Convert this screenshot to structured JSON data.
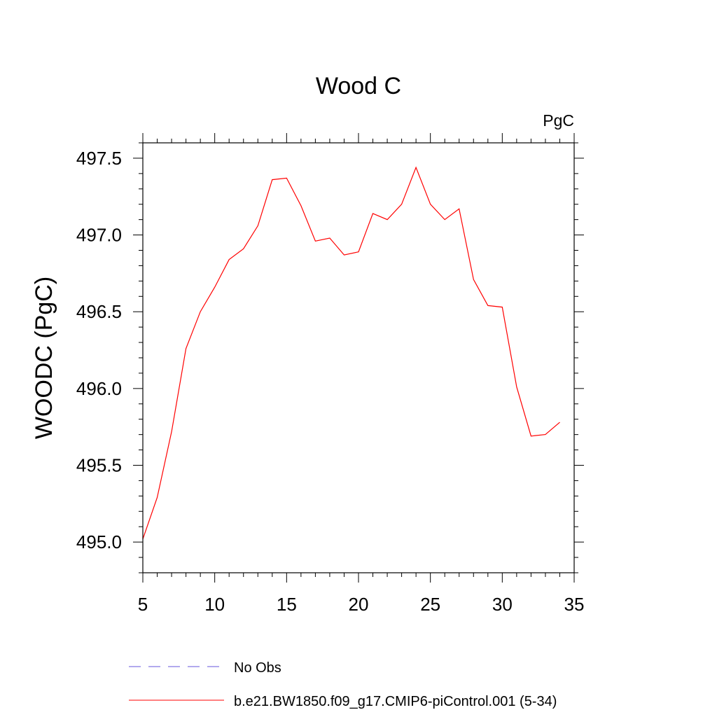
{
  "chart_data": {
    "type": "line",
    "title": "Wood C",
    "units_label": "PgC",
    "ylabel": "WOODC  (PgC)",
    "xlabel": "",
    "xlim": [
      5,
      35
    ],
    "ylim": [
      494.8,
      497.6
    ],
    "x_ticks": [
      5,
      10,
      15,
      20,
      25,
      30,
      35
    ],
    "y_ticks": [
      495.0,
      495.5,
      496.0,
      496.5,
      497.0,
      497.5
    ],
    "y_tick_labels": [
      "495.0",
      "495.5",
      "496.0",
      "496.5",
      "497.0",
      "497.5"
    ],
    "grid": false,
    "legend_position": "bottom",
    "series": [
      {
        "name": "b.e21.BW1850.f09_g17.CMIP6-piControl.001 (5-34)",
        "color": "#ff0000",
        "style": "solid",
        "x": [
          5,
          6,
          7,
          8,
          9,
          10,
          11,
          12,
          13,
          14,
          15,
          16,
          17,
          18,
          19,
          20,
          21,
          22,
          23,
          24,
          25,
          26,
          27,
          28,
          29,
          30,
          31,
          32,
          33,
          34
        ],
        "values": [
          495.02,
          495.29,
          495.72,
          496.26,
          496.5,
          496.66,
          496.84,
          496.91,
          497.06,
          497.36,
          497.37,
          497.19,
          496.96,
          496.98,
          496.87,
          496.89,
          497.14,
          497.1,
          497.2,
          497.44,
          497.2,
          497.1,
          497.17,
          496.71,
          496.54,
          496.53,
          496.01,
          495.69,
          495.7,
          495.78
        ]
      }
    ],
    "legend": [
      {
        "label": "No Obs",
        "color": "#6655dd",
        "style": "dashed"
      },
      {
        "label": "b.e21.BW1850.f09_g17.CMIP6-piControl.001 (5-34)",
        "color": "#ff0000",
        "style": "solid"
      }
    ]
  }
}
